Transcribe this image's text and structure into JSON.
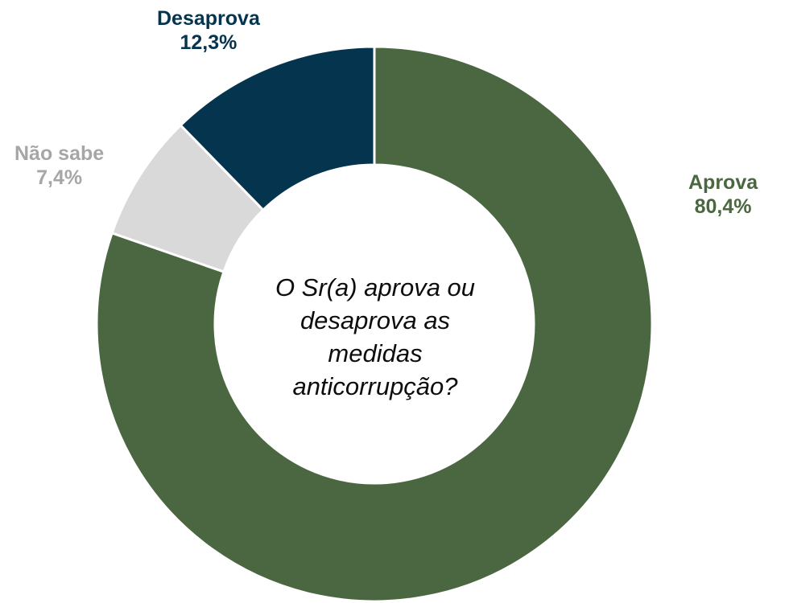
{
  "chart_data": {
    "type": "pie",
    "variant": "donut",
    "center_text": "O Sr(a) aprova ou desaprova as medidas anticorrupção?",
    "slices": [
      {
        "name": "Aprova",
        "value": 80.4,
        "label": "80,4%",
        "color": "#4a6741"
      },
      {
        "name": "Não sabe",
        "value": 7.4,
        "label": "7,4%",
        "color": "#d9d9d9",
        "label_color": "#a6a6a6"
      },
      {
        "name": "Desaprova",
        "value": 12.3,
        "label": "12,3%",
        "color": "#04344e"
      }
    ],
    "legend": "none"
  }
}
